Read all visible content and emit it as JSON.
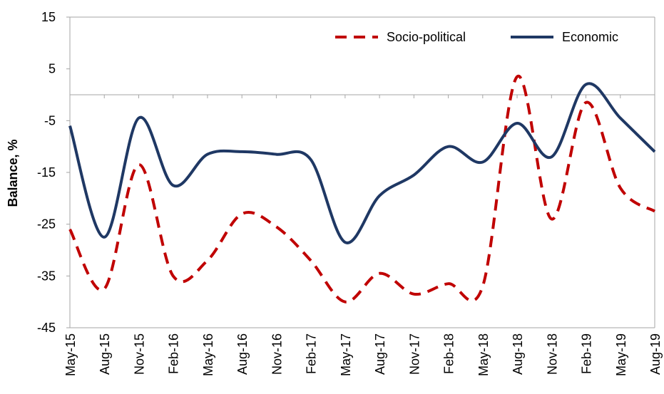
{
  "chart_data": {
    "type": "line",
    "xlabel": "",
    "ylabel": "Balance, %",
    "ylim": [
      -45,
      15
    ],
    "yticks": [
      15,
      5,
      -5,
      -15,
      -25,
      -35,
      -45
    ],
    "categories": [
      "May-15",
      "Aug-15",
      "Nov-15",
      "Feb-16",
      "May-16",
      "Aug-16",
      "Nov-16",
      "Feb-17",
      "May-17",
      "Aug-17",
      "Nov-17",
      "Feb-18",
      "May-18",
      "Aug-18",
      "Nov-18",
      "Feb-19",
      "May-19",
      "Aug-19"
    ],
    "legend_position": "top-right",
    "grid": false,
    "series": [
      {
        "name": "Socio-political",
        "color": "#C00000",
        "style": "dashed",
        "values": [
          -26,
          -37.5,
          -13.5,
          -35,
          -32,
          -23,
          -25.5,
          -32,
          -40,
          -34.5,
          -38.5,
          -36.5,
          -37,
          3.5,
          -24,
          -1.5,
          -18,
          -22.5
        ]
      },
      {
        "name": "Economic",
        "color": "#1F3864",
        "style": "solid",
        "values": [
          -6,
          -27.5,
          -4.5,
          -17.5,
          -11.5,
          -11,
          -11.5,
          -12.5,
          -28.5,
          -19.5,
          -15.5,
          -10,
          -13,
          -5.5,
          -12,
          2,
          -4.5,
          -11
        ]
      }
    ]
  }
}
